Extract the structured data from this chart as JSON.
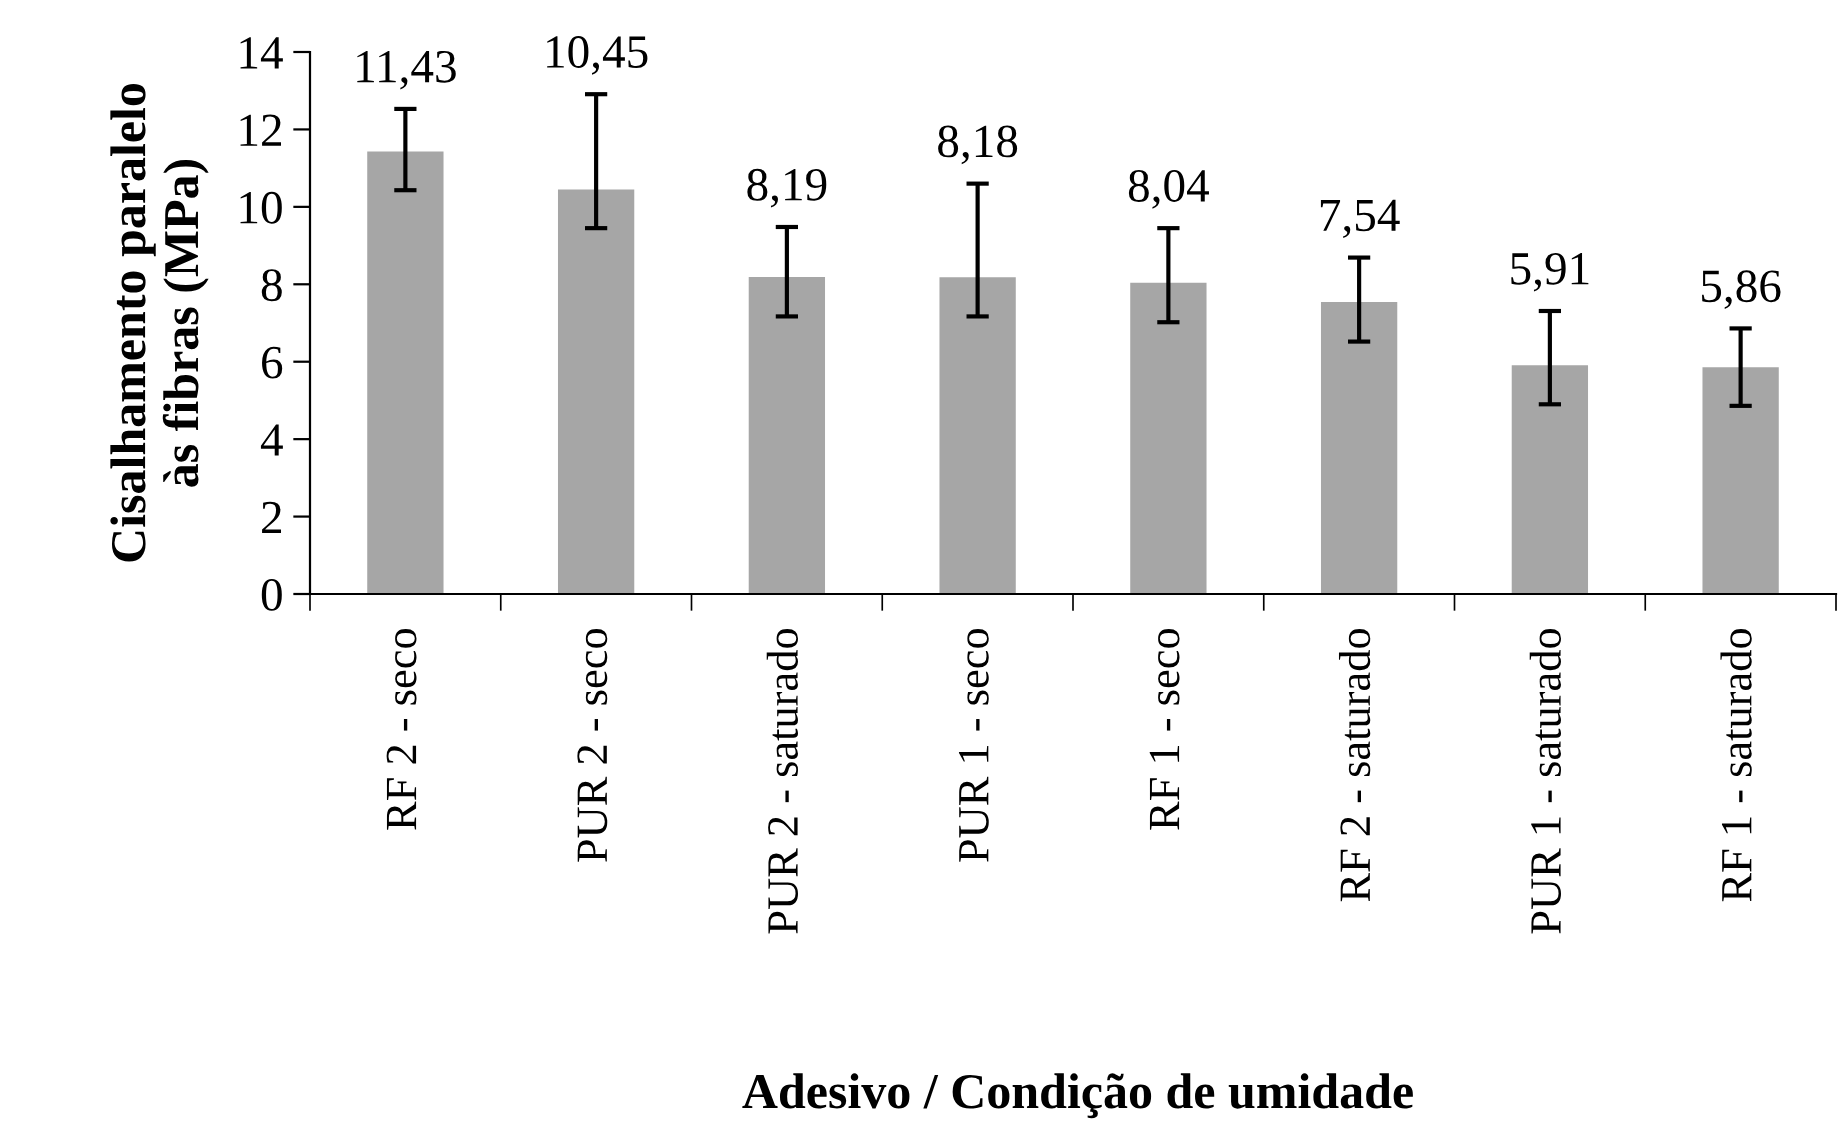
{
  "chart_data": {
    "type": "bar",
    "xlabel": "Adesivo / Condição de umidade",
    "ylabel": "Cisalhamento paralelo\nàs fibras (MPa)",
    "categories": [
      "RF 2 - seco",
      "PUR 2 - seco",
      "PUR 2 - saturado",
      "PUR 1 - seco",
      "RF 1 - seco",
      "RF 2 - saturado",
      "PUR 1 - saturado",
      "RF 1 - saturado"
    ],
    "values": [
      11.43,
      10.45,
      8.19,
      8.18,
      8.04,
      7.54,
      5.91,
      5.86
    ],
    "value_labels": [
      "11,43",
      "10,45",
      "8,19",
      "8,18",
      "8,04",
      "7,54",
      "5,91",
      "5,86"
    ],
    "errors": [
      [
        10.43,
        12.53
      ],
      [
        9.45,
        12.91
      ],
      [
        7.17,
        9.48
      ],
      [
        7.17,
        10.6
      ],
      [
        7.02,
        9.45
      ],
      [
        6.52,
        8.69
      ],
      [
        4.9,
        7.31
      ],
      [
        4.86,
        6.86
      ]
    ],
    "color": "#a6a6a6",
    "ylim": [
      0,
      14
    ],
    "yticks": [
      0,
      2,
      4,
      6,
      8,
      10,
      12,
      14
    ],
    "grid": false,
    "legend": false
  }
}
